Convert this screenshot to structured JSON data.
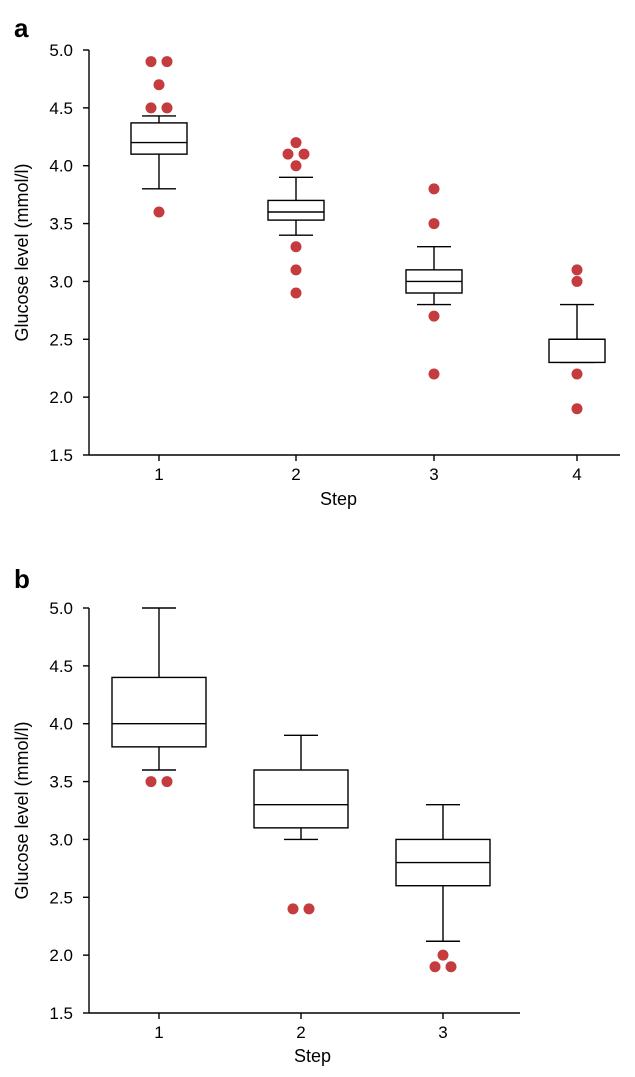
{
  "chart_data": [
    {
      "panel": "a",
      "type": "box",
      "xlabel": "Step",
      "ylabel": "Glucose level (mmol/l)",
      "ylim": [
        1.5,
        5.0
      ],
      "yticks": [
        "1.5",
        "2.0",
        "2.5",
        "3.0",
        "3.5",
        "4.0",
        "4.5",
        "5.0"
      ],
      "categories": [
        "1",
        "2",
        "3",
        "4"
      ],
      "outlier_color": "#c43c3e",
      "boxes": [
        {
          "whisker_low": 3.8,
          "q1": 4.1,
          "median": 4.2,
          "q3": 4.37,
          "whisker_high": 4.43,
          "outliers": [
            [
              -0.5,
              4.9
            ],
            [
              0.5,
              4.9
            ],
            [
              0,
              4.7
            ],
            [
              -0.5,
              4.5
            ],
            [
              0.5,
              4.5
            ],
            [
              0,
              3.6
            ]
          ]
        },
        {
          "whisker_low": 3.4,
          "q1": 3.53,
          "median": 3.6,
          "q3": 3.7,
          "whisker_high": 3.9,
          "outliers": [
            [
              0,
              4.2
            ],
            [
              -0.5,
              4.1
            ],
            [
              0.5,
              4.1
            ],
            [
              0,
              4.0
            ],
            [
              0,
              3.3
            ],
            [
              0,
              3.1
            ],
            [
              0,
              2.9
            ]
          ]
        },
        {
          "whisker_low": 2.8,
          "q1": 2.9,
          "median": 3.0,
          "q3": 3.1,
          "whisker_high": 3.3,
          "outliers": [
            [
              0,
              3.8
            ],
            [
              0,
              3.5
            ],
            [
              0,
              2.7
            ],
            [
              0,
              2.2
            ]
          ]
        },
        {
          "whisker_low": 2.3,
          "q1": 2.3,
          "median": 2.5,
          "q3": 2.5,
          "whisker_high": 2.8,
          "outliers": [
            [
              0,
              3.1
            ],
            [
              0,
              3.0
            ],
            [
              0,
              2.2
            ],
            [
              0,
              1.9
            ]
          ]
        }
      ]
    },
    {
      "panel": "b",
      "type": "box",
      "xlabel": "Step",
      "ylabel": "Glucose level (mmol/l)",
      "ylim": [
        1.5,
        5.0
      ],
      "yticks": [
        "1.5",
        "2.0",
        "2.5",
        "3.0",
        "3.5",
        "4.0",
        "4.5",
        "5.0"
      ],
      "categories": [
        "1",
        "2",
        "3"
      ],
      "outlier_color": "#c43c3e",
      "boxes": [
        {
          "whisker_low": 3.6,
          "q1": 3.8,
          "median": 4.0,
          "q3": 4.4,
          "whisker_high": 5.0,
          "outliers": [
            [
              -0.5,
              3.5
            ],
            [
              0.5,
              3.5
            ]
          ]
        },
        {
          "whisker_low": 3.0,
          "q1": 3.1,
          "median": 3.3,
          "q3": 3.6,
          "whisker_high": 3.9,
          "outliers": [
            [
              -0.5,
              2.4
            ],
            [
              0.5,
              2.4
            ]
          ]
        },
        {
          "whisker_low": 2.12,
          "q1": 2.6,
          "median": 2.8,
          "q3": 3.0,
          "whisker_high": 3.3,
          "outliers": [
            [
              0,
              2.0
            ],
            [
              -0.5,
              1.9
            ],
            [
              0.5,
              1.9
            ]
          ]
        }
      ]
    }
  ]
}
